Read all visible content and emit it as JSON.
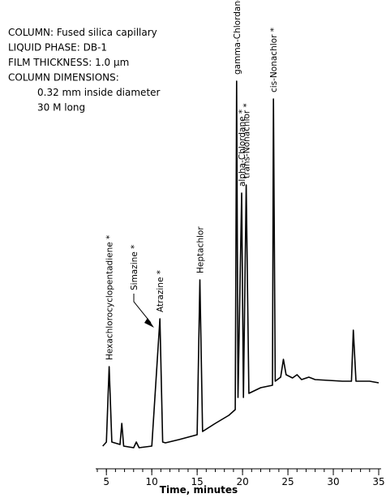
{
  "chart_data": {
    "type": "line",
    "xlabel": "Time, minutes",
    "info": [
      "COLUMN: Fused silica capillary",
      "LIQUID PHASE: DB-1",
      "FILM THICKNESS: 1.0 μm",
      "COLUMN DIMENSIONS:",
      "0.32 mm inside diameter",
      "30 M long"
    ],
    "xlim": [
      4,
      35
    ],
    "ylim": [
      0,
      100
    ],
    "xticks": [
      5,
      10,
      15,
      20,
      25,
      30,
      35
    ],
    "x": [
      4.6,
      5.0,
      5.3,
      5.6,
      6.5,
      6.7,
      6.9,
      8,
      8.3,
      8.6,
      10,
      10.9,
      11.2,
      11.5,
      13,
      15,
      15.3,
      15.6,
      17,
      18.5,
      19.2,
      19.35,
      19.5,
      19.9,
      20.1,
      20.4,
      20.7,
      22,
      23.3,
      23.4,
      23.6,
      24.2,
      24.5,
      24.8,
      25.5,
      26,
      26.5,
      27.3,
      28,
      31,
      32,
      32.2,
      32.5,
      34,
      35
    ],
    "series": [
      {
        "color": "#000000",
        "values": [
          2,
          3,
          21.6,
          3,
          2.4,
          7.6,
          2,
          1.6,
          3,
          1.6,
          2,
          33.4,
          3,
          2.8,
          3.6,
          4.8,
          43,
          5.6,
          7.6,
          9.6,
          11,
          92,
          14,
          64.4,
          14,
          66.4,
          15,
          16.4,
          17,
          87.6,
          18,
          19,
          23.4,
          19.6,
          18.8,
          19.6,
          18.4,
          19,
          18.4,
          18,
          18,
          30.6,
          18,
          18,
          17.6
        ]
      }
    ],
    "peaks": [
      {
        "name": "Hexachlorocyclopentadiene *",
        "time": 5.3,
        "height": 21.6
      },
      {
        "name": "Simazine *",
        "time": 10.7,
        "height": 31
      },
      {
        "name": "Atrazine *",
        "time": 10.9,
        "height": 33.4
      },
      {
        "name": "Heptachlor",
        "time": 15.3,
        "height": 43
      },
      {
        "name": "gamma-Chlordane *",
        "time": 19.35,
        "height": 92
      },
      {
        "name": "alpha-Chlordane *",
        "time": 19.9,
        "height": 64.4
      },
      {
        "name": "trans-Nonachlor *",
        "time": 20.4,
        "height": 66.4
      },
      {
        "name": "cis-Nonachlor *",
        "time": 23.4,
        "height": 87.6
      }
    ]
  }
}
